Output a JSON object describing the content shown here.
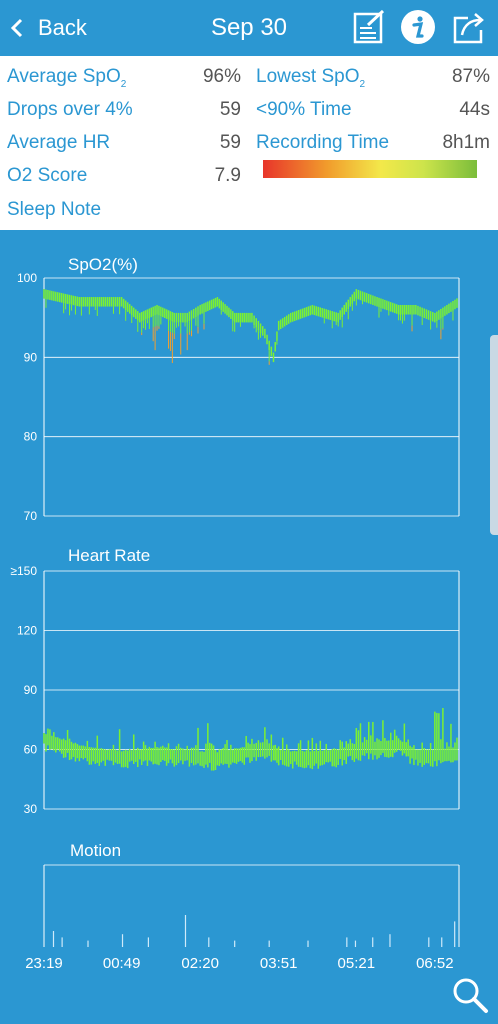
{
  "header": {
    "back_label": "Back",
    "title": "Sep 30",
    "icons": [
      "edit-note-icon",
      "info-icon",
      "share-icon"
    ]
  },
  "stats": {
    "avg_spo2_label": "Average SpO",
    "avg_spo2_sub": "2",
    "avg_spo2_value": "96%",
    "lowest_spo2_label": "Lowest SpO",
    "lowest_spo2_sub": "2",
    "lowest_spo2_value": "87%",
    "drops_label": "Drops over 4%",
    "drops_value": "59",
    "below90_label": "<90% Time",
    "below90_value": "44s",
    "avg_hr_label": "Average HR",
    "avg_hr_value": "59",
    "recording_label": "Recording Time",
    "recording_value": "8h1m",
    "o2score_label": "O2 Score",
    "o2score_value": "7.9",
    "sleep_note_label": "Sleep Note",
    "score_scale_colors": [
      "#e8352b",
      "#f19c2c",
      "#f3e84a",
      "#cde44b",
      "#7bbd3b"
    ]
  },
  "colors": {
    "background": "#2b97d2",
    "accent_text": "#2b97d2",
    "value_text": "#555555",
    "trace_green": "#7cf032",
    "trace_orange": "#f0a030"
  },
  "x_labels": [
    "23:19",
    "00:49",
    "02:20",
    "03:51",
    "05:21",
    "06:52"
  ],
  "chart_data": [
    {
      "type": "line",
      "title": "SpO2(%)",
      "y_ticks": [
        "100",
        "90",
        "80",
        "70"
      ],
      "ylim": [
        70,
        100
      ],
      "x_range": [
        "23:19",
        "07:20"
      ],
      "x": [
        "23:19",
        "00:00",
        "00:30",
        "00:49",
        "01:10",
        "01:30",
        "01:50",
        "02:05",
        "02:20",
        "02:40",
        "03:00",
        "03:20",
        "03:35",
        "03:45",
        "03:51",
        "04:05",
        "04:30",
        "05:00",
        "05:21",
        "05:45",
        "06:10",
        "06:30",
        "06:52",
        "07:20"
      ],
      "series": [
        {
          "values": [
            98,
            97,
            97,
            97,
            95,
            96,
            95,
            95,
            96,
            97,
            95,
            95,
            93,
            90,
            94,
            95,
            96,
            95,
            98,
            97,
            96,
            96,
            95,
            97
          ],
          "min_values": [
            96,
            95,
            95,
            95,
            91,
            89,
            89,
            90,
            93,
            95,
            93,
            93,
            91,
            87,
            92,
            94,
            95,
            93,
            96,
            95,
            94,
            93,
            91,
            95
          ]
        }
      ],
      "grid": true
    },
    {
      "type": "line",
      "title": "Heart Rate",
      "y_ticks": [
        "≥150",
        "120",
        "90",
        "60",
        "30"
      ],
      "ylim": [
        30,
        150
      ],
      "x_range": [
        "23:19",
        "07:20"
      ],
      "x": [
        "23:19",
        "00:00",
        "00:30",
        "00:49",
        "01:10",
        "01:30",
        "01:50",
        "02:05",
        "02:20",
        "02:40",
        "03:00",
        "03:20",
        "03:35",
        "03:45",
        "03:51",
        "04:05",
        "04:30",
        "05:00",
        "05:21",
        "05:45",
        "06:10",
        "06:30",
        "06:52",
        "07:20"
      ],
      "series": [
        {
          "values": [
            66,
            60,
            58,
            57,
            58,
            59,
            58,
            58,
            57,
            56,
            58,
            60,
            62,
            60,
            58,
            57,
            57,
            58,
            61,
            62,
            63,
            58,
            58,
            59
          ],
          "max_values": [
            75,
            70,
            68,
            72,
            66,
            64,
            66,
            70,
            80,
            66,
            66,
            70,
            78,
            74,
            70,
            64,
            66,
            68,
            74,
            74,
            78,
            66,
            80,
            85
          ]
        }
      ],
      "grid": true
    },
    {
      "type": "bar",
      "title": "Motion",
      "x_range": [
        "23:19",
        "07:20"
      ],
      "x": [
        "23:30",
        "23:40",
        "00:10",
        "00:50",
        "01:20",
        "02:03",
        "02:30",
        "03:00",
        "03:40",
        "04:25",
        "05:10",
        "05:20",
        "05:40",
        "06:00",
        "06:45",
        "07:00",
        "07:15"
      ],
      "values": [
        0.5,
        0.3,
        0.2,
        0.4,
        0.3,
        1.0,
        0.3,
        0.2,
        0.2,
        0.2,
        0.3,
        0.2,
        0.3,
        0.4,
        0.3,
        0.3,
        0.8
      ],
      "grid": false
    }
  ]
}
